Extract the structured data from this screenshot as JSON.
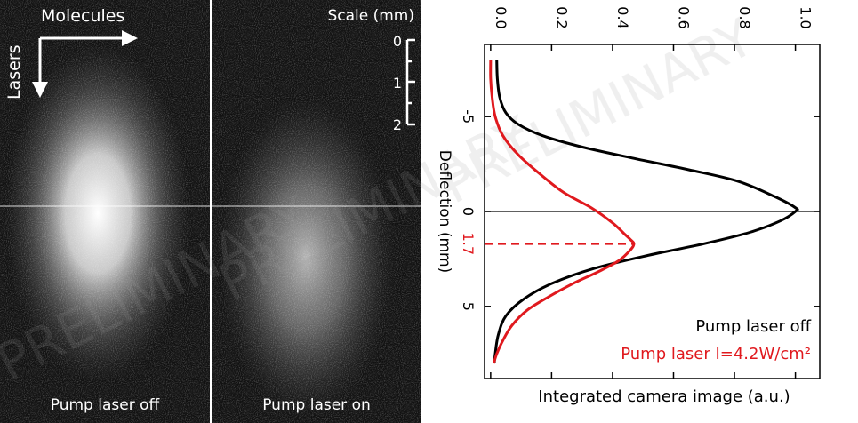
{
  "left_panels": {
    "panel1": {
      "label": "Pump laser off"
    },
    "panel2": {
      "label": "Pump laser on"
    },
    "molecules_label": "Molecules",
    "lasers_label": "Lasers",
    "scale": {
      "title": "Scale (mm)",
      "ticks": [
        "0",
        "1",
        "2"
      ]
    }
  },
  "watermark": "PRELIMINARY",
  "colors": {
    "black_curve": "#000000",
    "red_curve": "#e0191e",
    "image_background": "#111111"
  },
  "chart_data": {
    "type": "line",
    "xlabel": "Integrated camera image (a.u.)",
    "ylabel": "Deflection (mm)",
    "xlim": [
      -0.02,
      1.08
    ],
    "ylim": [
      -8.8,
      8.8
    ],
    "y_inverted": true,
    "xticks": [
      0.0,
      0.2,
      0.4,
      0.6,
      0.8,
      1.0
    ],
    "xtick_labels": [
      "0.0",
      "0.2",
      "0.4",
      "0.6",
      "0.8",
      "1.0"
    ],
    "yticks": [
      -5,
      0,
      5
    ],
    "ytick_labels": [
      "-5",
      "0",
      "5"
    ],
    "series": [
      {
        "name": "Pump laser off",
        "color": "#000000",
        "x": [
          0.02,
          0.022,
          0.03,
          0.05,
          0.09,
          0.17,
          0.3,
          0.47,
          0.65,
          0.81,
          0.93,
          1.0,
          1.0,
          0.95,
          0.85,
          0.7,
          0.52,
          0.34,
          0.2,
          0.11,
          0.05,
          0.025,
          0.015,
          0.012
        ],
        "y": [
          -8,
          -7,
          -6,
          -5.2,
          -4.6,
          -4.0,
          -3.4,
          -2.8,
          -2.2,
          -1.6,
          -0.8,
          -0.2,
          0.0,
          0.5,
          1.1,
          1.7,
          2.3,
          3.0,
          3.8,
          4.6,
          5.5,
          6.5,
          7.5,
          8.0
        ]
      },
      {
        "name": "Pump laser I=4.2W/cm²",
        "color": "#e0191e",
        "x": [
          0.0,
          0.0,
          0.005,
          0.015,
          0.04,
          0.09,
          0.16,
          0.24,
          0.33,
          0.4,
          0.44,
          0.46,
          0.47,
          0.46,
          0.42,
          0.35,
          0.27,
          0.19,
          0.12,
          0.07,
          0.04,
          0.02,
          0.01
        ],
        "y": [
          -8,
          -7,
          -6,
          -5,
          -4,
          -3,
          -2,
          -1,
          -0.2,
          0.6,
          1.2,
          1.5,
          1.7,
          2.0,
          2.6,
          3.2,
          3.8,
          4.5,
          5.2,
          6.0,
          6.8,
          7.5,
          8.0
        ]
      }
    ],
    "reference_lines": [
      {
        "orientation": "horizontal",
        "y": 0,
        "color": "#000000",
        "style": "solid"
      },
      {
        "orientation": "horizontal",
        "y": 1.7,
        "color": "#e0191e",
        "style": "dashed",
        "x_end": 0.47
      }
    ],
    "annotations": [
      {
        "text": "1.7",
        "y": 1.7,
        "color": "#e0191e"
      }
    ],
    "legend": {
      "position": "bottom-right",
      "entries": [
        {
          "text": "Pump laser off",
          "color": "#000000"
        },
        {
          "text": "Pump laser I=4.2W/cm²",
          "color": "#e0191e"
        }
      ]
    }
  }
}
